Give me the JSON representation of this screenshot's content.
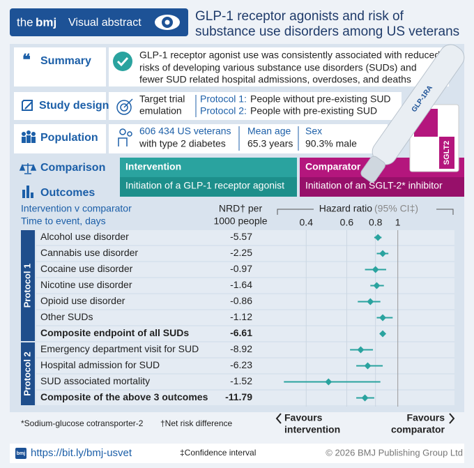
{
  "header": {
    "logo_the": "the",
    "logo_bmj": "bmj",
    "label": "Visual abstract",
    "title": [
      "GLP-1 receptor agonists and risk of",
      "substance use disorders among US veterans"
    ]
  },
  "summary": {
    "label": "Summary",
    "text": [
      "GLP-1 receptor agonist use was consistently associated with reduced",
      "risks of developing various substance use disorders (SUDs) and",
      "fewer SUD related hospital admissions, overdoses, and deaths"
    ]
  },
  "study_design": {
    "label": "Study design",
    "text": [
      "Target trial",
      "emulation"
    ],
    "protocols": [
      {
        "label": "Protocol 1:",
        "text": "People without pre-existing SUD"
      },
      {
        "label": "Protocol 2:",
        "text": "People with pre-existing SUD"
      }
    ]
  },
  "population": {
    "label": "Population",
    "items": [
      [
        "606 434 US veterans",
        "with type 2 diabetes"
      ],
      [
        "Mean age",
        "65.3 years"
      ],
      [
        "Sex",
        "90.3% male"
      ]
    ]
  },
  "comparison": {
    "label": "Comparison",
    "intervention": {
      "title": "Intervention",
      "text": "Initiation of a GLP-1 receptor agonist"
    },
    "comparator": {
      "title": "Comparator",
      "text": "Initiation of an SGLT-2* inhibitor"
    },
    "pen_label": "GLP-1RA",
    "box_label": "SGLT2"
  },
  "outcomes": {
    "label": "Outcomes",
    "col_header": [
      "Intervention v comparator",
      "Time to event, days"
    ],
    "nrd_header": [
      "NRD† per",
      "1000 people"
    ],
    "hr_header": "Hazard ratio",
    "hr_ci": "(95% CI‡)",
    "xscale": "log",
    "xlim": [
      0.3,
      1.8
    ],
    "xticks": [
      0.4,
      0.6,
      0.8,
      1
    ],
    "color": "#2aa39f",
    "groups": [
      {
        "label": "Protocol 1",
        "rows": [
          {
            "name": "Alcohol use disorder",
            "nrd": -5.57,
            "hr": 0.82,
            "ci": [
              0.79,
              0.85
            ]
          },
          {
            "name": "Cannabis use disorder",
            "nrd": -2.25,
            "hr": 0.86,
            "ci": [
              0.81,
              0.91
            ]
          },
          {
            "name": "Cocaine use disorder",
            "nrd": -0.97,
            "hr": 0.8,
            "ci": [
              0.72,
              0.89
            ]
          },
          {
            "name": "Nicotine use disorder",
            "nrd": -1.64,
            "hr": 0.81,
            "ci": [
              0.76,
              0.87
            ]
          },
          {
            "name": "Opioid use disorder",
            "nrd": -0.86,
            "hr": 0.76,
            "ci": [
              0.67,
              0.84
            ]
          },
          {
            "name": "Other SUDs",
            "nrd": -1.12,
            "hr": 0.86,
            "ci": [
              0.81,
              0.95
            ]
          },
          {
            "name": "Composite endpoint of all SUDs",
            "nrd": -6.61,
            "hr": 0.86,
            "ci": [
              0.85,
              0.87
            ],
            "bold": true
          }
        ]
      },
      {
        "label": "Protocol 2",
        "rows": [
          {
            "name": "Emergency department visit for SUD",
            "nrd": -8.92,
            "hr": 0.69,
            "ci": [
              0.62,
              0.78
            ]
          },
          {
            "name": "Hospital admission for SUD",
            "nrd": -6.23,
            "hr": 0.74,
            "ci": [
              0.66,
              0.86
            ]
          },
          {
            "name": "SUD associated mortality",
            "nrd": -1.52,
            "hr": 0.5,
            "ci": [
              0.32,
              0.84
            ]
          },
          {
            "name": "Composite of the above 3 outcomes",
            "nrd": -11.79,
            "hr": 0.72,
            "ci": [
              0.66,
              0.79
            ],
            "bold": true
          }
        ]
      }
    ],
    "favours_left": [
      "Favours",
      "intervention"
    ],
    "favours_right": [
      "Favours",
      "comparator"
    ]
  },
  "footer": {
    "note_star": "*Sodium-glucose cotransporter-2",
    "note_dagger": "†Net risk difference",
    "note_ddagger": "‡Confidence interval",
    "logo": "bmj",
    "url": "https://bit.ly/bmj-usvet",
    "copyright": "© 2026 BMJ Publishing Group Ltd"
  }
}
